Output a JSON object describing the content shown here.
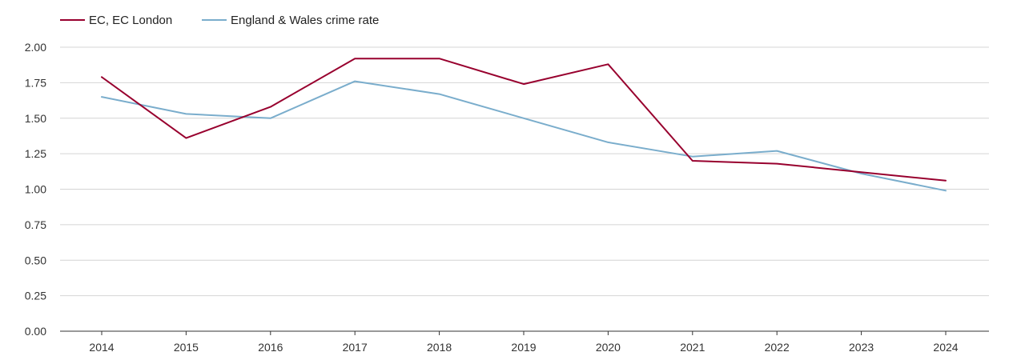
{
  "chart_data": {
    "type": "line",
    "title": "",
    "xlabel": "",
    "ylabel": "",
    "categories": [
      "2014",
      "2015",
      "2016",
      "2017",
      "2018",
      "2019",
      "2020",
      "2021",
      "2022",
      "2023",
      "2024"
    ],
    "ylim": [
      0,
      2
    ],
    "yticks": [
      "0.00",
      "0.25",
      "0.50",
      "0.75",
      "1.00",
      "1.25",
      "1.50",
      "1.75",
      "2.00"
    ],
    "grid": true,
    "legend_position": "top-left",
    "series": [
      {
        "name": "EC, EC London",
        "color": "#98002e",
        "values": [
          1.79,
          1.36,
          1.58,
          1.92,
          1.92,
          1.74,
          1.88,
          1.2,
          1.18,
          1.12,
          1.06
        ]
      },
      {
        "name": "England & Wales crime rate",
        "color": "#7aadcc",
        "values": [
          1.65,
          1.53,
          1.5,
          1.76,
          1.67,
          1.5,
          1.33,
          1.23,
          1.27,
          1.11,
          0.99
        ]
      }
    ]
  }
}
